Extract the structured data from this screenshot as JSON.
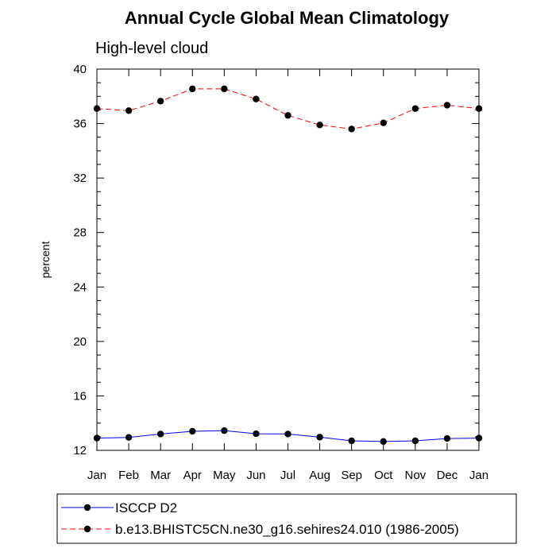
{
  "chart_data": {
    "type": "line",
    "title": "Annual Cycle Global Mean Climatology",
    "subtitle": "High-level cloud",
    "xlabel": "",
    "ylabel": "percent",
    "categories": [
      "Jan",
      "Feb",
      "Mar",
      "Apr",
      "May",
      "Jun",
      "Jul",
      "Aug",
      "Sep",
      "Oct",
      "Nov",
      "Dec",
      "Jan"
    ],
    "ylim": [
      12,
      40
    ],
    "yticks": [
      12,
      16,
      20,
      24,
      28,
      32,
      36,
      40
    ],
    "legend_position": "bottom",
    "series": [
      {
        "name": "ISCCP D2",
        "color": "#0000ff",
        "line_style": "solid",
        "marker": "filled-circle",
        "values": [
          12.9,
          12.95,
          13.2,
          13.4,
          13.45,
          13.22,
          13.2,
          12.97,
          12.7,
          12.65,
          12.7,
          12.87,
          12.9
        ]
      },
      {
        "name": "b.e13.BHISTC5CN.ne30_g16.sehires24.010 (1986-2005)",
        "color": "#ff0000",
        "line_style": "dashed",
        "marker": "filled-circle",
        "values": [
          37.1,
          36.95,
          37.65,
          38.55,
          38.55,
          37.8,
          36.6,
          35.9,
          35.6,
          36.05,
          37.1,
          37.35,
          37.1
        ]
      }
    ]
  }
}
